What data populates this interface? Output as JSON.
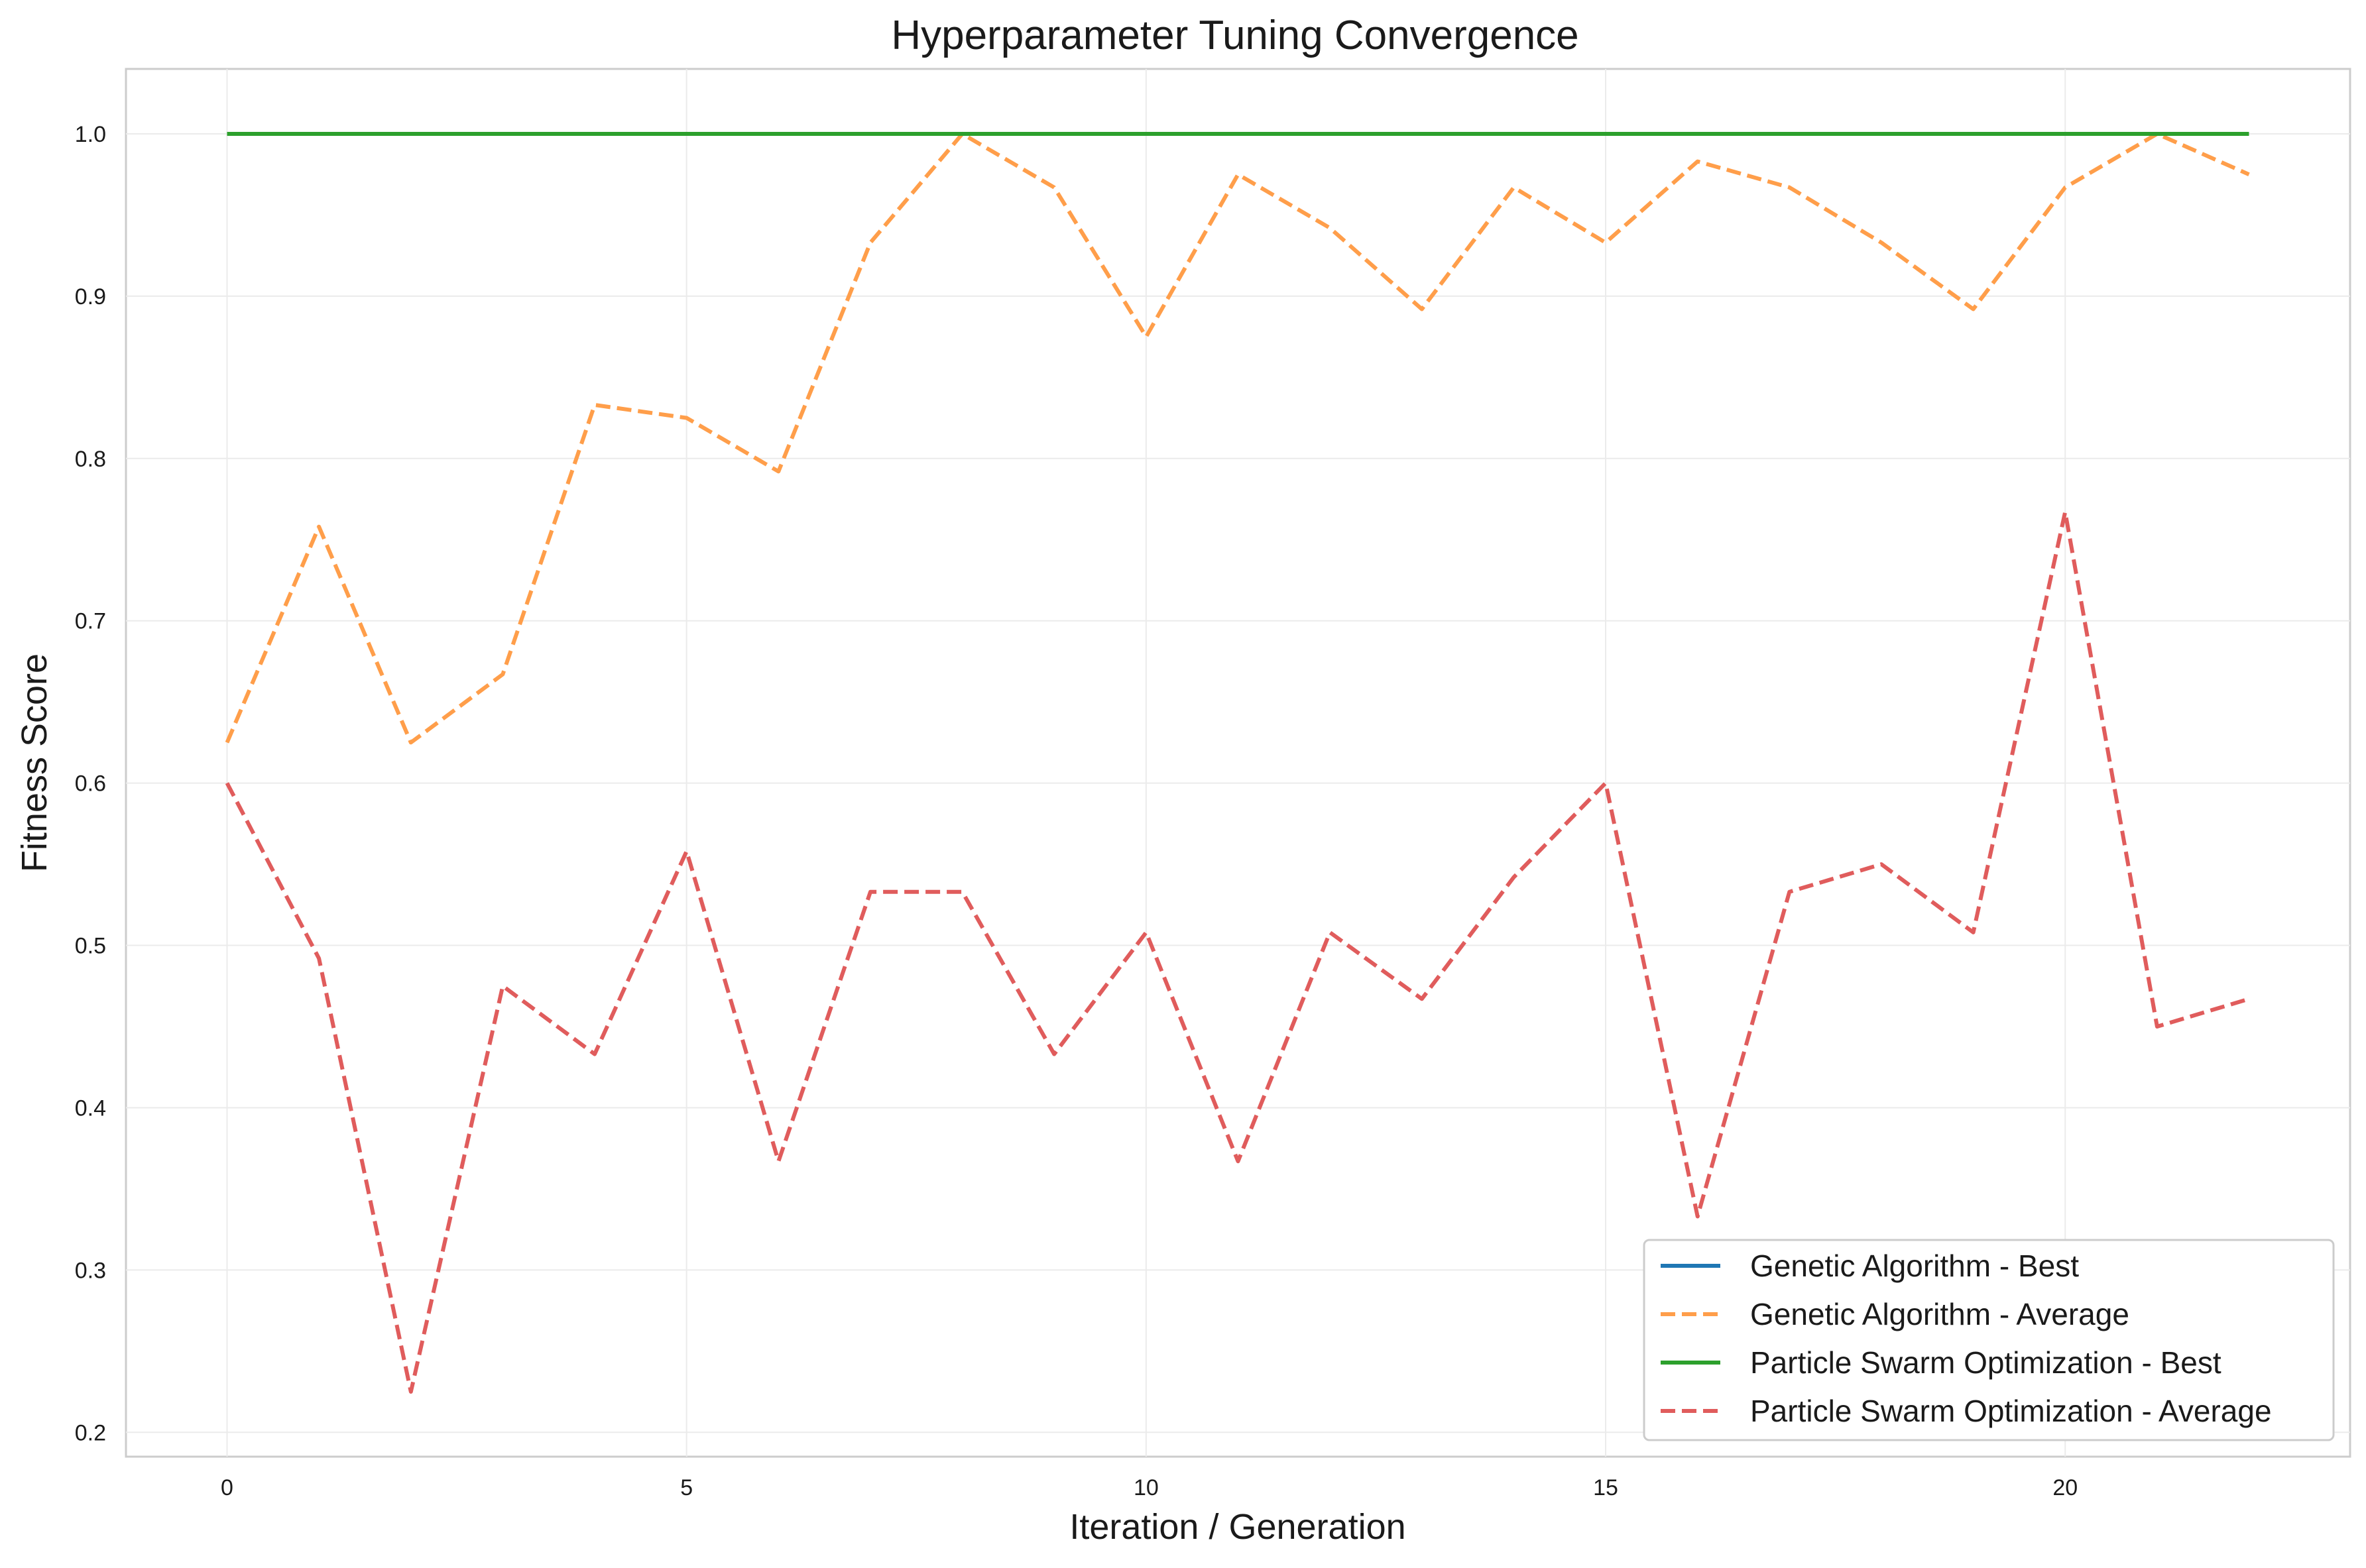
{
  "chart_data": {
    "type": "line",
    "title": "Hyperparameter Tuning Convergence",
    "xlabel": "Iteration / Generation",
    "ylabel": "Fitness Score",
    "xlim": [
      -1.1,
      23.1
    ],
    "ylim": [
      0.185,
      1.04
    ],
    "xticks": [
      0,
      5,
      10,
      15,
      20
    ],
    "xtick_labels": [
      "0",
      "5",
      "10",
      "15",
      "20"
    ],
    "yticks": [
      0.2,
      0.3,
      0.4,
      0.5,
      0.6,
      0.7,
      0.8,
      0.9,
      1.0
    ],
    "ytick_labels": [
      "0.2",
      "0.3",
      "0.4",
      "0.5",
      "0.6",
      "0.7",
      "0.8",
      "0.9",
      "1.0"
    ],
    "grid": true,
    "legend_position": "lower-right",
    "x": [
      0,
      1,
      2,
      3,
      4,
      5,
      6,
      7,
      8,
      9,
      10,
      11,
      12,
      13,
      14,
      15,
      16,
      17,
      18,
      19,
      20,
      21,
      22
    ],
    "series": [
      {
        "name": "Genetic Algorithm - Best",
        "color": "#1f77b4",
        "style": "solid",
        "values": [
          1.0,
          1.0,
          1.0,
          1.0,
          1.0,
          1.0,
          1.0,
          1.0,
          1.0,
          1.0,
          1.0,
          1.0,
          1.0,
          1.0,
          1.0,
          1.0,
          1.0,
          1.0,
          1.0,
          1.0,
          1.0,
          1.0,
          1.0
        ]
      },
      {
        "name": "Genetic Algorithm - Average",
        "color": "#ff9e4a",
        "style": "dashed",
        "values": [
          0.625,
          0.758,
          0.625,
          0.667,
          0.833,
          0.825,
          0.792,
          0.933,
          1.0,
          0.967,
          0.875,
          0.975,
          0.942,
          0.892,
          0.967,
          0.933,
          0.983,
          0.967,
          0.933,
          0.892,
          0.967,
          1.0,
          0.975
        ]
      },
      {
        "name": "Particle Swarm Optimization - Best",
        "color": "#2ca02c",
        "style": "solid",
        "values": [
          1.0,
          1.0,
          1.0,
          1.0,
          1.0,
          1.0,
          1.0,
          1.0,
          1.0,
          1.0,
          1.0,
          1.0,
          1.0,
          1.0,
          1.0,
          1.0,
          1.0,
          1.0,
          1.0,
          1.0,
          1.0,
          1.0,
          1.0
        ]
      },
      {
        "name": "Particle Swarm Optimization - Average",
        "color": "#e05c5c",
        "style": "dashed",
        "values": [
          0.6,
          0.492,
          0.225,
          0.475,
          0.433,
          0.558,
          0.367,
          0.533,
          0.533,
          0.433,
          0.508,
          0.367,
          0.508,
          0.467,
          0.542,
          0.6,
          0.333,
          0.533,
          0.55,
          0.508,
          0.767,
          0.45,
          0.467
        ]
      }
    ]
  }
}
